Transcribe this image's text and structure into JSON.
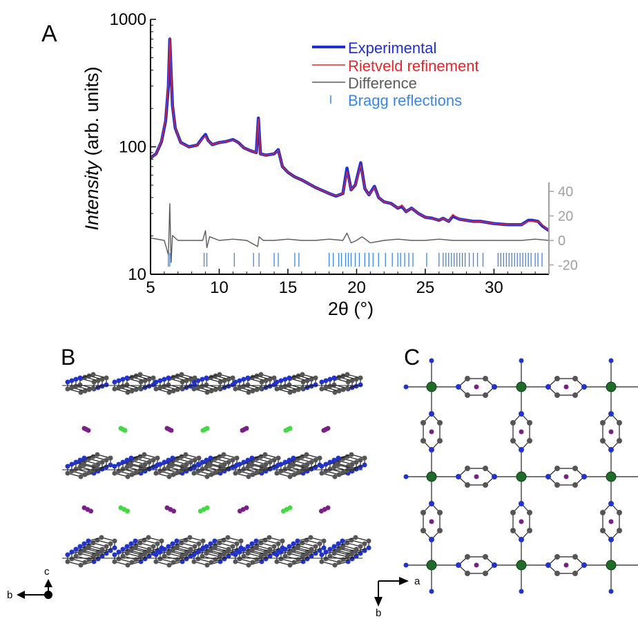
{
  "panels": {
    "a": "A",
    "b": "B",
    "c": "C"
  },
  "axes_b": {
    "c": "c",
    "b": "b"
  },
  "axes_c": {
    "a": "a",
    "b": "b"
  },
  "colors": {
    "experimental": "#1f2fd6",
    "rietveld": "#e8262a",
    "difference": "#5a5a5a",
    "bragg": "#3a86e8",
    "diff_axis": "#a0a0a0",
    "atom_c": "#555555",
    "atom_n": "#2233cc",
    "atom_metal": "#1e6b2a",
    "atom_i": "#7a1f86",
    "atom_cl": "#44d844"
  },
  "chart_data": {
    "type": "line",
    "title": "",
    "xlabel": "2θ (°)",
    "ylabel_italic": "Intensity",
    "ylabel_rest": " (arb. units)",
    "yscale": "log",
    "xlim": [
      5,
      34
    ],
    "ylim": [
      10,
      1000
    ],
    "xticks": [
      5,
      10,
      15,
      20,
      25,
      30
    ],
    "yticks": [
      10,
      100,
      1000
    ],
    "right_axis": {
      "label": "",
      "ticks": [
        40,
        20,
        0,
        -20
      ],
      "range": [
        -32,
        45
      ]
    },
    "legend": {
      "placement": "top-right",
      "entries": [
        "Experimental",
        "Rietveld refinement",
        "Difference",
        "Bragg reflections"
      ]
    },
    "series": [
      {
        "name": "Experimental",
        "x": [
          5.0,
          5.4,
          5.8,
          6.1,
          6.3,
          6.4,
          6.5,
          6.6,
          6.8,
          7.2,
          7.8,
          8.4,
          8.8,
          9.0,
          9.2,
          9.5,
          10.0,
          10.5,
          11.0,
          11.4,
          11.8,
          12.3,
          12.7,
          12.85,
          13.0,
          13.4,
          14.0,
          14.3,
          14.6,
          15.0,
          15.5,
          16.0,
          17.0,
          18.0,
          18.5,
          19.0,
          19.3,
          19.6,
          19.9,
          20.3,
          20.6,
          20.9,
          21.3,
          21.6,
          22.0,
          22.5,
          23.0,
          23.3,
          23.6,
          24.0,
          24.5,
          25.0,
          25.5,
          26.0,
          26.3,
          26.7,
          27.0,
          27.5,
          28.0,
          28.5,
          29.0,
          29.5,
          30.0,
          31.0,
          32.0,
          32.5,
          32.8,
          33.2,
          33.5,
          34.0
        ],
        "y": [
          82,
          88,
          110,
          160,
          300,
          700,
          380,
          210,
          140,
          108,
          100,
          103,
          118,
          125,
          112,
          104,
          108,
          110,
          114,
          108,
          98,
          93,
          90,
          168,
          88,
          86,
          88,
          95,
          70,
          63,
          58,
          55,
          48,
          43,
          41,
          43,
          68,
          46,
          50,
          75,
          47,
          42,
          49,
          40,
          37,
          36,
          33,
          34,
          31,
          33,
          30,
          28,
          27.5,
          26.5,
          27.5,
          26,
          28.5,
          27,
          26.5,
          26,
          26,
          25.5,
          25,
          24.5,
          24.5,
          26.5,
          26.5,
          26,
          24,
          22
        ]
      },
      {
        "name": "Rietveld refinement",
        "x": [
          5.0,
          5.4,
          5.8,
          6.1,
          6.3,
          6.4,
          6.5,
          6.6,
          6.8,
          7.2,
          7.8,
          8.4,
          8.8,
          9.0,
          9.2,
          9.5,
          10.0,
          10.5,
          11.0,
          11.4,
          11.8,
          12.3,
          12.7,
          12.85,
          13.0,
          13.4,
          14.0,
          14.3,
          14.6,
          15.0,
          15.5,
          16.0,
          17.0,
          18.0,
          18.5,
          19.0,
          19.3,
          19.6,
          19.9,
          20.3,
          20.6,
          20.9,
          21.3,
          21.6,
          22.0,
          22.5,
          23.0,
          23.3,
          23.6,
          24.0,
          24.5,
          25.0,
          25.5,
          26.0,
          26.3,
          26.7,
          27.0,
          27.5,
          28.0,
          28.5,
          29.0,
          29.5,
          30.0,
          31.0,
          32.0,
          32.5,
          32.8,
          33.2,
          33.5,
          34.0
        ],
        "y": [
          82,
          88,
          111,
          165,
          320,
          720,
          390,
          212,
          140,
          107,
          100,
          103,
          116,
          122,
          111,
          104,
          108,
          110,
          113,
          108,
          98,
          93,
          90,
          165,
          88,
          86,
          88,
          94,
          70,
          63,
          58,
          55,
          48,
          43,
          41,
          43,
          64,
          46,
          50,
          72,
          47,
          42,
          48,
          40,
          37,
          36,
          33,
          35,
          31,
          33,
          30,
          28,
          27.5,
          26.5,
          27.5,
          26,
          29.5,
          27,
          26.5,
          26,
          26,
          25.5,
          25,
          24.5,
          24.5,
          26,
          26,
          26,
          24.5,
          22
        ]
      },
      {
        "name": "Difference",
        "x": [
          5.0,
          6.0,
          6.3,
          6.4,
          6.5,
          6.6,
          7.0,
          8.8,
          9.0,
          9.1,
          9.3,
          10.0,
          11.0,
          12.0,
          12.8,
          12.9,
          13.2,
          14.0,
          15.0,
          16.0,
          17.0,
          18.0,
          19.0,
          19.3,
          19.6,
          20.0,
          20.4,
          21.0,
          22.0,
          23.0,
          24.0,
          25.0,
          26.0,
          27.0,
          28.0,
          30.0,
          32.0,
          33.0,
          34.0
        ],
        "y": [
          2,
          0,
          -12,
          30,
          -18,
          4,
          0,
          0,
          8,
          -6,
          3,
          0,
          1,
          0,
          -5,
          3,
          0,
          0,
          1,
          0,
          0,
          1,
          0,
          6,
          -2,
          0,
          3,
          -2,
          0,
          1,
          0,
          0,
          1,
          0,
          0,
          0,
          0,
          1,
          0
        ]
      }
    ],
    "bragg_positions": [
      6.3,
      6.4,
      8.9,
      9.1,
      11.1,
      12.5,
      12.9,
      14.0,
      14.3,
      15.5,
      15.8,
      18.0,
      18.3,
      18.7,
      18.9,
      19.2,
      19.4,
      19.6,
      19.9,
      20.2,
      20.6,
      20.9,
      21.2,
      21.6,
      22.1,
      22.6,
      23.0,
      23.2,
      23.5,
      23.8,
      24.1,
      25.1,
      26.0,
      26.3,
      26.5,
      26.7,
      26.9,
      27.1,
      27.3,
      27.5,
      27.7,
      27.9,
      28.2,
      28.5,
      28.8,
      29.2,
      30.3,
      30.5,
      30.7,
      30.9,
      31.1,
      31.3,
      31.5,
      31.7,
      31.9,
      32.1,
      32.3,
      32.5,
      32.7,
      33.0,
      33.2,
      33.5
    ]
  }
}
